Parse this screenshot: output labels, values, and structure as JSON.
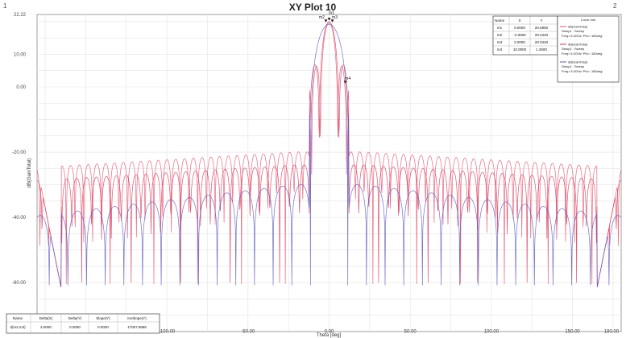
{
  "window": {
    "corner_left": "1",
    "corner_right": "2"
  },
  "chart_data": {
    "type": "line",
    "title": "XY Plot 10",
    "xlabel": "Theta [deg]",
    "ylabel": "dB(GainTotal)",
    "xlim": [
      -180,
      180
    ],
    "ylim": [
      -75,
      22.2
    ],
    "y_ticks": [
      22.22,
      10.0,
      0.0,
      -20.0,
      -40.0,
      -60.0
    ],
    "y_tick_labels": [
      "22.22",
      "10.00",
      "0.00",
      "-20.00",
      "-40.00",
      "-60.00"
    ],
    "x_ticks": [
      -100,
      -50,
      0,
      50,
      100,
      150,
      180
    ],
    "x_tick_labels": [
      "-100.00",
      "-50.00",
      "0.00",
      "50.00",
      "100.00",
      "150.00",
      "180.00"
    ],
    "grid": true,
    "legend_position": "top-right",
    "series": [
      {
        "name": "dB(GainTotal)",
        "color": "#e8506a",
        "setup": "Setup1 : Sweep",
        "params": "Freq='4.0GHz' Phi='-180deg'",
        "peak": 19.6,
        "side_lobe": -20,
        "null_spacing": 5.4
      },
      {
        "name": "dB(GainTotal)",
        "color": "#d63a5a",
        "setup": "Setup1 : Sweep",
        "params": "Freq='4.0GHz' Phi='-180deg'",
        "peak": 20.0,
        "side_lobe": -24,
        "null_spacing": 6.1
      },
      {
        "name": "dB(GainTotal)",
        "color": "#5b5bc2",
        "setup": "Setup1 : Sweep",
        "params": "Freq='4.0GHz' Phi='-180deg'",
        "peak": 19.2,
        "side_lobe": -30,
        "null_spacing": 11.5
      }
    ],
    "markers": [
      {
        "name": "m1",
        "x": 0.0,
        "y": 20.59
      },
      {
        "name": "m2",
        "x": -2.0,
        "y": 20.04
      },
      {
        "name": "m3",
        "x": 2.0,
        "y": 20.04
      },
      {
        "name": "m4",
        "x": 10.0,
        "y": 1.26
      }
    ],
    "marker_table": {
      "headers": [
        "Name",
        "X",
        "Y"
      ],
      "rows": [
        [
          "m1",
          "0.0000",
          "20.5950"
        ],
        [
          "m2",
          "-2.0000",
          "20.0440"
        ],
        [
          "m3",
          "2.0000",
          "20.0440"
        ],
        [
          "m4",
          "10.0000",
          "1.2600"
        ]
      ]
    },
    "legend_title": "Curve Info",
    "delta_table": {
      "headers": [
        "Name",
        "Delta(X)",
        "Delta(Y)",
        "Slope(Y)",
        "InvSlope(Y)"
      ],
      "rows": [
        [
          "d(m2,m3)",
          "4.0000",
          "0.0000",
          "0.0000",
          "17007.8686"
        ]
      ]
    }
  }
}
